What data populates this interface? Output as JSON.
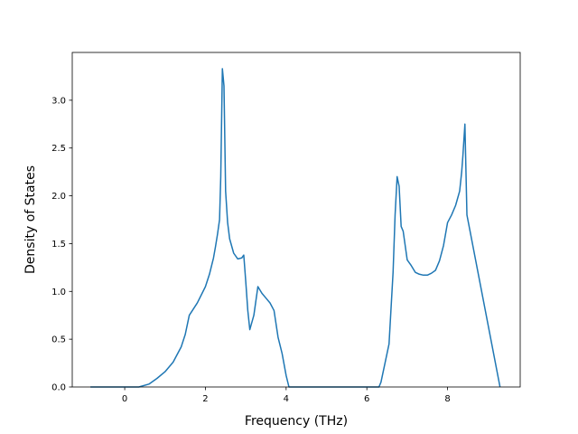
{
  "chart_data": {
    "type": "line",
    "title": "",
    "xlabel": "Frequency (THz)",
    "ylabel": "Density of States",
    "xlim": [
      -1.3,
      9.8
    ],
    "ylim": [
      0.0,
      3.5
    ],
    "grid": false,
    "x_ticks": [
      0,
      2,
      4,
      6,
      8
    ],
    "x_tick_labels": [
      "0",
      "2",
      "4",
      "6",
      "8"
    ],
    "y_ticks": [
      0.0,
      0.5,
      1.0,
      1.5,
      2.0,
      2.5,
      3.0
    ],
    "y_tick_labels": [
      "0.0",
      "0.5",
      "1.0",
      "1.5",
      "2.0",
      "2.5",
      "3.0"
    ],
    "series": [
      {
        "color": "#1f77b4",
        "x": [
          -0.85,
          0.0,
          0.35,
          0.6,
          0.8,
          1.0,
          1.2,
          1.4,
          1.5,
          1.6,
          1.8,
          2.0,
          2.1,
          2.2,
          2.25,
          2.3,
          2.35,
          2.38,
          2.42,
          2.46,
          2.5,
          2.55,
          2.6,
          2.7,
          2.8,
          2.9,
          2.95,
          3.0,
          3.05,
          3.1,
          3.2,
          3.3,
          3.4,
          3.5,
          3.6,
          3.7,
          3.8,
          3.9,
          4.0,
          4.07,
          5.0,
          6.0,
          6.3,
          6.35,
          6.45,
          6.55,
          6.65,
          6.7,
          6.75,
          6.8,
          6.85,
          6.9,
          7.0,
          7.1,
          7.2,
          7.3,
          7.4,
          7.5,
          7.6,
          7.7,
          7.8,
          7.9,
          8.0,
          8.1,
          8.2,
          8.3,
          8.35,
          8.38,
          8.43,
          8.48,
          9.3
        ],
        "y": [
          0.0,
          0.0,
          0.0,
          0.03,
          0.09,
          0.16,
          0.26,
          0.42,
          0.55,
          0.75,
          0.88,
          1.05,
          1.18,
          1.35,
          1.47,
          1.6,
          1.75,
          2.2,
          3.33,
          3.15,
          2.05,
          1.72,
          1.55,
          1.4,
          1.34,
          1.35,
          1.38,
          1.1,
          0.8,
          0.6,
          0.75,
          1.05,
          0.98,
          0.93,
          0.88,
          0.8,
          0.52,
          0.35,
          0.12,
          0.0,
          0.0,
          0.0,
          0.0,
          0.05,
          0.25,
          0.45,
          1.2,
          1.8,
          2.2,
          2.1,
          1.68,
          1.63,
          1.33,
          1.27,
          1.2,
          1.18,
          1.17,
          1.17,
          1.19,
          1.22,
          1.32,
          1.48,
          1.72,
          1.8,
          1.9,
          2.05,
          2.25,
          2.42,
          2.75,
          1.8,
          0.0
        ]
      }
    ]
  }
}
